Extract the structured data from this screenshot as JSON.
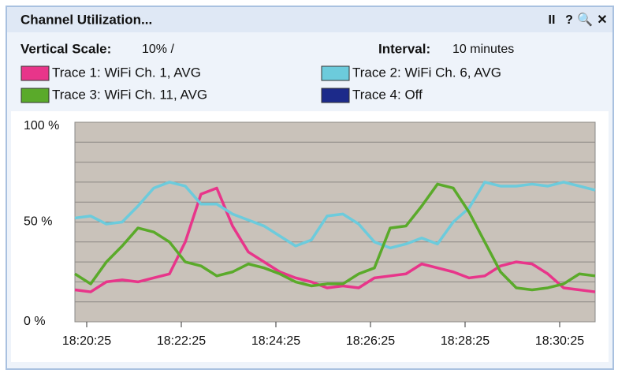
{
  "chart_data": {
    "type": "line",
    "title": "Channel Utilization...",
    "toolbar": [
      "II",
      "?",
      "🔍",
      "✕"
    ],
    "vertical_scale_label": "Vertical Scale:",
    "vertical_scale_value": "10% /",
    "interval_label": "Interval:",
    "interval_value": "10 minutes",
    "x": [
      66010,
      66030,
      66050,
      66070,
      66090,
      66110,
      66130,
      66150,
      66170,
      66190,
      66210,
      66230,
      66250,
      66270,
      66290,
      66310,
      66330,
      66350,
      66370,
      66390,
      66410,
      66430,
      66450,
      66470,
      66490,
      66510,
      66530,
      66550,
      66570,
      66590,
      66610,
      66630,
      66650,
      66670
    ],
    "xlim": [
      66010,
      66670
    ],
    "xticks": [
      {
        "value": 66025,
        "label": "18:20:25"
      },
      {
        "value": 66145,
        "label": "18:22:25"
      },
      {
        "value": 66265,
        "label": "18:24:25"
      },
      {
        "value": 66385,
        "label": "18:26:25"
      },
      {
        "value": 66505,
        "label": "18:28:25"
      },
      {
        "value": 66625,
        "label": "18:30:25"
      }
    ],
    "ylim": [
      0,
      100
    ],
    "yticks": [
      {
        "value": 100,
        "label": "100 %"
      },
      {
        "value": 50,
        "label": "50 %"
      },
      {
        "value": 0,
        "label": "0 %"
      }
    ],
    "ygrid": [
      10,
      20,
      30,
      40,
      50,
      60,
      70,
      80,
      90
    ],
    "series": [
      {
        "name": "Trace 1: WiFi Ch. 1, AVG",
        "color": "#e8358a",
        "values": [
          16,
          15,
          20,
          21,
          20,
          22,
          24,
          40,
          64,
          67,
          48,
          35,
          30,
          25,
          22,
          20,
          17,
          18,
          17,
          22,
          23,
          24,
          29,
          27,
          25,
          22,
          23,
          28,
          30,
          29,
          24,
          17,
          16,
          15
        ]
      },
      {
        "name": "Trace 2: WiFi Ch. 6, AVG",
        "color": "#6ccbdc",
        "values": [
          52,
          53,
          49,
          50,
          58,
          67,
          70,
          68,
          59,
          59,
          54,
          51,
          48,
          43,
          38,
          41,
          53,
          54,
          49,
          40,
          37,
          39,
          42,
          39,
          50,
          57,
          70,
          68,
          68,
          69,
          68,
          70,
          68,
          66
        ]
      },
      {
        "name": "Trace 3: WiFi Ch. 11, AVG",
        "color": "#5aaa2a",
        "values": [
          24,
          19,
          30,
          38,
          47,
          45,
          40,
          30,
          28,
          23,
          25,
          29,
          27,
          24,
          20,
          18,
          19,
          19,
          24,
          27,
          47,
          48,
          58,
          69,
          67,
          55,
          40,
          25,
          17,
          16,
          17,
          19,
          24,
          23
        ]
      },
      {
        "name": "Trace 4: Off",
        "color": "#1c2a8a"
      }
    ]
  }
}
